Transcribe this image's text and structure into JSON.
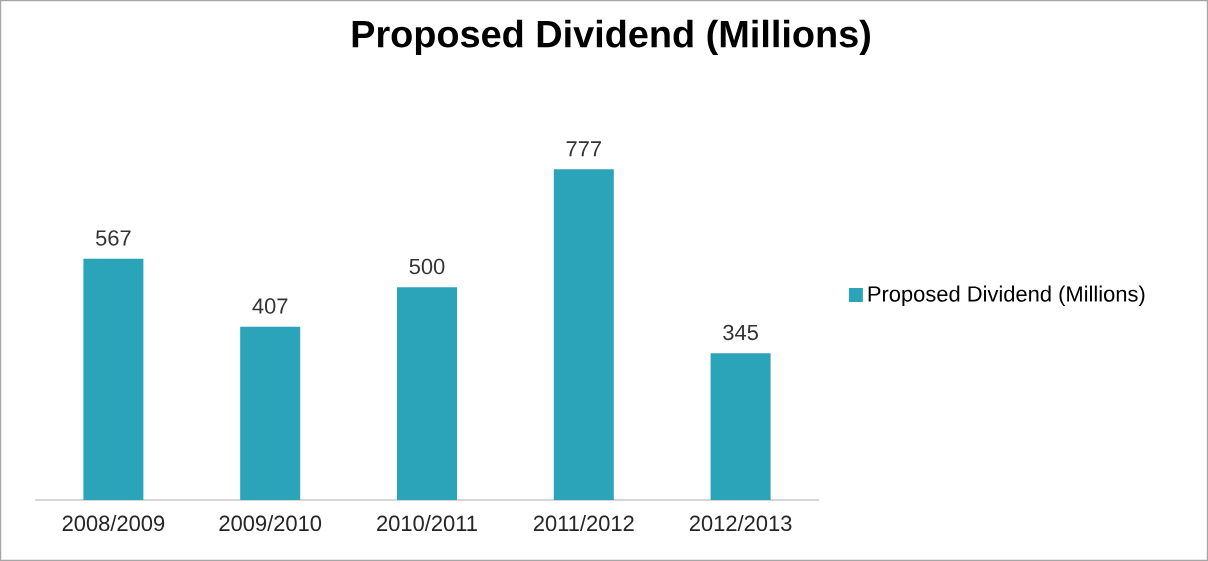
{
  "chart_data": {
    "type": "bar",
    "title": "Proposed Dividend (Millions)",
    "categories": [
      "2008/2009",
      "2009/2010",
      "2010/2011",
      "2011/2012",
      "2012/2013"
    ],
    "series": [
      {
        "name": "Proposed Dividend (Millions)",
        "color": "#2ba3b9",
        "values": [
          567,
          407,
          500,
          777,
          345
        ]
      }
    ],
    "data_labels": true,
    "legend": "right"
  }
}
